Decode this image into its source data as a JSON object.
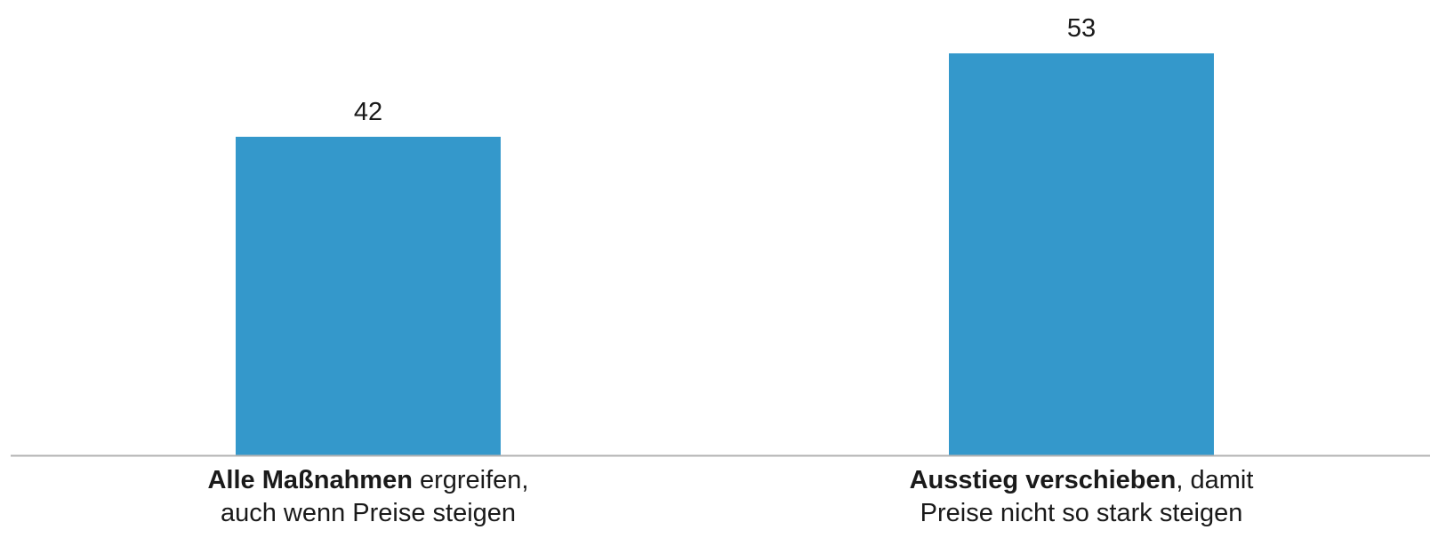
{
  "chart_data": {
    "type": "bar",
    "categories": [
      "Alle Maßnahmen ergreifen, auch wenn Preise steigen",
      "Ausstieg verschieben, damit Preise nicht so stark steigen"
    ],
    "category_labels": [
      {
        "bold": "Alle Maßnahmen",
        "rest": " ergreifen,",
        "line2": "auch wenn Preise steigen"
      },
      {
        "bold": "Ausstieg verschieben",
        "rest": ", damit",
        "line2": "Preise nicht so stark steigen"
      }
    ],
    "values": [
      42,
      53
    ],
    "value_labels": [
      "42",
      "53"
    ],
    "ylim": [
      0,
      60
    ],
    "grid": false,
    "legend": false,
    "colors": {
      "bar": "#3498cb",
      "axis": "#b3b3b3",
      "text": "#1a1a1a"
    }
  }
}
